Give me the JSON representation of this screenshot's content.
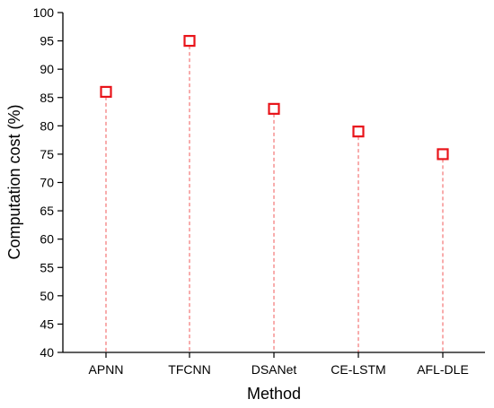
{
  "chart_data": {
    "type": "scatter",
    "title": "",
    "xlabel": "Method",
    "ylabel": "Computation cost (%)",
    "categories": [
      "APNN",
      "TFCNN",
      "DSANet",
      "CE-LSTM",
      "AFL-DLE"
    ],
    "values": [
      86,
      95,
      83,
      79,
      75
    ],
    "ylim": [
      40,
      100
    ],
    "yticks": [
      40,
      45,
      50,
      55,
      60,
      65,
      70,
      75,
      80,
      85,
      90,
      95,
      100
    ],
    "marker": "hollow-square",
    "drop_lines": "dashed-to-x-axis",
    "grid": false,
    "colors": {
      "marker": "#e8141a",
      "drop_line": "#f05a5a",
      "axis": "#000000"
    }
  }
}
